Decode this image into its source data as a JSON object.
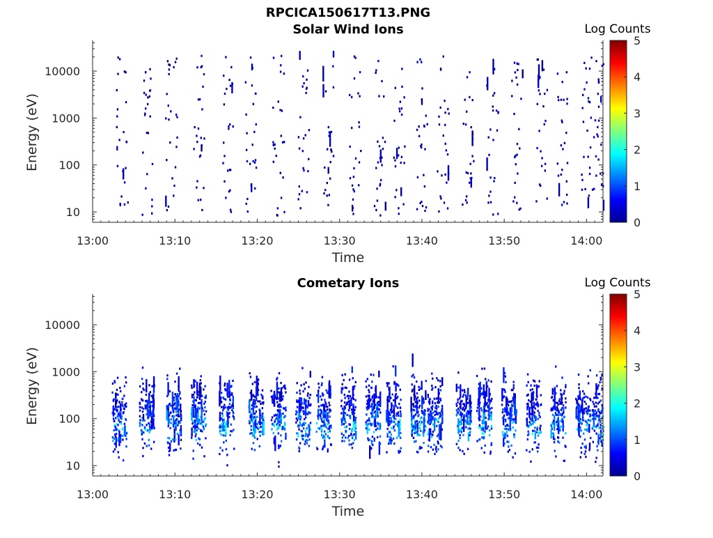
{
  "figure": {
    "title": "RPCICA150617T13.PNG"
  },
  "colors": {
    "colormap": "jet",
    "background": "#ffffff",
    "axes": "#262626"
  },
  "chart_data": [
    {
      "type": "heatmap",
      "title": "Solar Wind Ions",
      "xlabel": "Time",
      "ylabel": "Energy (eV)",
      "x_tick_labels": [
        "13:00",
        "13:10",
        "13:20",
        "13:30",
        "13:40",
        "13:50",
        "14:00"
      ],
      "x_ticks_minutes": [
        0,
        10,
        20,
        30,
        40,
        50,
        60
      ],
      "xlim_minutes": [
        0,
        62
      ],
      "y_scale": "log",
      "y_tick_labels": [
        "10",
        "100",
        "1000",
        "10000"
      ],
      "y_ticks": [
        10,
        100,
        1000,
        10000
      ],
      "ylim": [
        6,
        45000
      ],
      "colorbar": {
        "label": "Log Counts",
        "tick_labels": [
          "0",
          "1",
          "2",
          "3",
          "4",
          "5"
        ],
        "ticks": [
          0,
          1,
          2,
          3,
          4,
          5
        ],
        "range": [
          0,
          5
        ]
      },
      "description_of_values": "Sparse scattered counts mostly at log count ~0 to 0.3 (dark blue), spread across energies 10 eV to 30000 eV in vertical bursts about every 3 minutes",
      "bursts_minutes": [
        3.5,
        6.5,
        9.5,
        12.8,
        16.3,
        19.2,
        22.5,
        25.5,
        28.5,
        31.8,
        34.8,
        37.2,
        40.0,
        42.5,
        45.5,
        48.5,
        51.5,
        54.5,
        57.0,
        60.0,
        61.5
      ],
      "value_range": [
        0,
        0.4
      ]
    },
    {
      "type": "heatmap",
      "title": "Cometary Ions",
      "xlabel": "Time",
      "ylabel": "Energy (eV)",
      "x_tick_labels": [
        "13:00",
        "13:10",
        "13:20",
        "13:30",
        "13:40",
        "13:50",
        "14:00"
      ],
      "x_ticks_minutes": [
        0,
        10,
        20,
        30,
        40,
        50,
        60
      ],
      "xlim_minutes": [
        0,
        62
      ],
      "y_scale": "log",
      "y_tick_labels": [
        "10",
        "100",
        "1000",
        "10000"
      ],
      "y_ticks": [
        10,
        100,
        1000,
        10000
      ],
      "ylim": [
        6,
        45000
      ],
      "colorbar": {
        "label": "Log Counts",
        "tick_labels": [
          "0",
          "1",
          "2",
          "3",
          "4",
          "5"
        ],
        "ticks": [
          0,
          1,
          2,
          3,
          4,
          5
        ],
        "range": [
          0,
          5
        ]
      },
      "description_of_values": "Dense bursts concentrated between 10 eV and 1000 eV, peak log counts ~2 near 40-100 eV",
      "bursts_minutes": [
        3.2,
        6.5,
        9.8,
        12.8,
        16.2,
        19.8,
        22.5,
        25.5,
        28.0,
        31.0,
        34.0,
        36.5,
        39.5,
        41.5,
        45.0,
        47.5,
        50.5,
        53.5,
        56.5,
        59.5,
        61.5
      ],
      "peak_value": 2.1,
      "value_range": [
        0,
        2.1
      ]
    }
  ]
}
